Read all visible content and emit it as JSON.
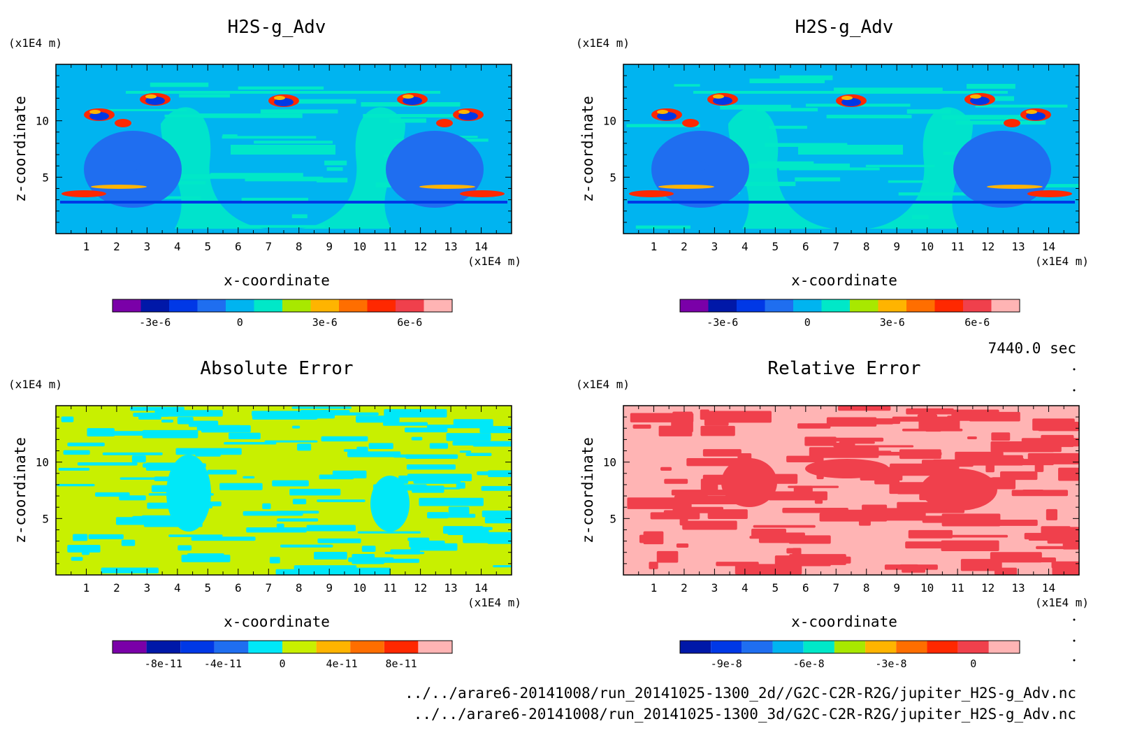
{
  "info": {
    "time": "7440.0 sec",
    "files": [
      "../../arare6-20141008/run_20141025-1300_2d//G2C-C2R-R2G/jupiter_H2S-g_Adv.nc",
      "../../arare6-20141008/run_20141025-1300_3d/G2C-C2R-R2G/jupiter_H2S-g_Adv.nc"
    ]
  },
  "chart_data": [
    {
      "type": "heatmap",
      "title": "H2S-g_Adv",
      "xlabel": "x-coordinate",
      "ylabel": "z-coordinate",
      "x_unit": "(x1E4 m)",
      "y_unit": "(x1E4 m)",
      "xlim": [
        0,
        15
      ],
      "ylim": [
        0,
        15
      ],
      "x_ticks": [
        "1",
        "2",
        "3",
        "4",
        "5",
        "6",
        "7",
        "8",
        "9",
        "10",
        "11",
        "12",
        "13",
        "14"
      ],
      "y_ticks": [
        "5",
        "10"
      ],
      "colorbar": {
        "colors": [
          "#7a00a8",
          "#0018a8",
          "#0038e6",
          "#1f6ef0",
          "#00b4f0",
          "#00e8c8",
          "#a8e800",
          "#ffb400",
          "#ff6e00",
          "#ff2800",
          "#f0404c",
          "#ffb4b4"
        ],
        "ticks": [
          "-3e-6",
          "0",
          "3e-6",
          "6e-6"
        ]
      }
    },
    {
      "type": "heatmap",
      "title": "H2S-g_Adv",
      "xlabel": "x-coordinate",
      "ylabel": "z-coordinate",
      "x_unit": "(x1E4 m)",
      "y_unit": "(x1E4 m)",
      "xlim": [
        0,
        15
      ],
      "ylim": [
        0,
        15
      ],
      "x_ticks": [
        "1",
        "2",
        "3",
        "4",
        "5",
        "6",
        "7",
        "8",
        "9",
        "10",
        "11",
        "12",
        "13",
        "14"
      ],
      "y_ticks": [
        "5",
        "10"
      ],
      "colorbar": {
        "colors": [
          "#7a00a8",
          "#0018a8",
          "#0038e6",
          "#1f6ef0",
          "#00b4f0",
          "#00e8c8",
          "#a8e800",
          "#ffb400",
          "#ff6e00",
          "#ff2800",
          "#f0404c",
          "#ffb4b4"
        ],
        "ticks": [
          "-3e-6",
          "0",
          "3e-6",
          "6e-6"
        ]
      }
    },
    {
      "type": "heatmap",
      "title": "Absolute Error",
      "xlabel": "x-coordinate",
      "ylabel": "z-coordinate",
      "x_unit": "(x1E4 m)",
      "y_unit": "(x1E4 m)",
      "xlim": [
        0,
        15
      ],
      "ylim": [
        0,
        15
      ],
      "x_ticks": [
        "1",
        "2",
        "3",
        "4",
        "5",
        "6",
        "7",
        "8",
        "9",
        "10",
        "11",
        "12",
        "13",
        "14"
      ],
      "y_ticks": [
        "5",
        "10"
      ],
      "colorbar": {
        "colors": [
          "#7a00a8",
          "#0018a8",
          "#0038e6",
          "#1f6ef0",
          "#00e8f8",
          "#c8f000",
          "#ffb400",
          "#ff6e00",
          "#ff2800",
          "#ffb4b4"
        ],
        "ticks": [
          "-8e-11",
          "-4e-11",
          "0",
          "4e-11",
          "8e-11"
        ]
      }
    },
    {
      "type": "heatmap",
      "title": "Relative Error",
      "xlabel": "x-coordinate",
      "ylabel": "z-coordinate",
      "x_unit": "(x1E4 m)",
      "y_unit": "(x1E4 m)",
      "xlim": [
        0,
        15
      ],
      "ylim": [
        0,
        15
      ],
      "x_ticks": [
        "1",
        "2",
        "3",
        "4",
        "5",
        "6",
        "7",
        "8",
        "9",
        "10",
        "11",
        "12",
        "13",
        "14"
      ],
      "y_ticks": [
        "5",
        "10"
      ],
      "colorbar": {
        "colors": [
          "#0018a8",
          "#0038e6",
          "#1f6ef0",
          "#00b4f0",
          "#00e8c8",
          "#a8e800",
          "#ffb400",
          "#ff6e00",
          "#ff2800",
          "#f0404c",
          "#ffb4b4"
        ],
        "ticks": [
          "-9e-8",
          "-6e-8",
          "-3e-8",
          "0"
        ]
      }
    }
  ]
}
